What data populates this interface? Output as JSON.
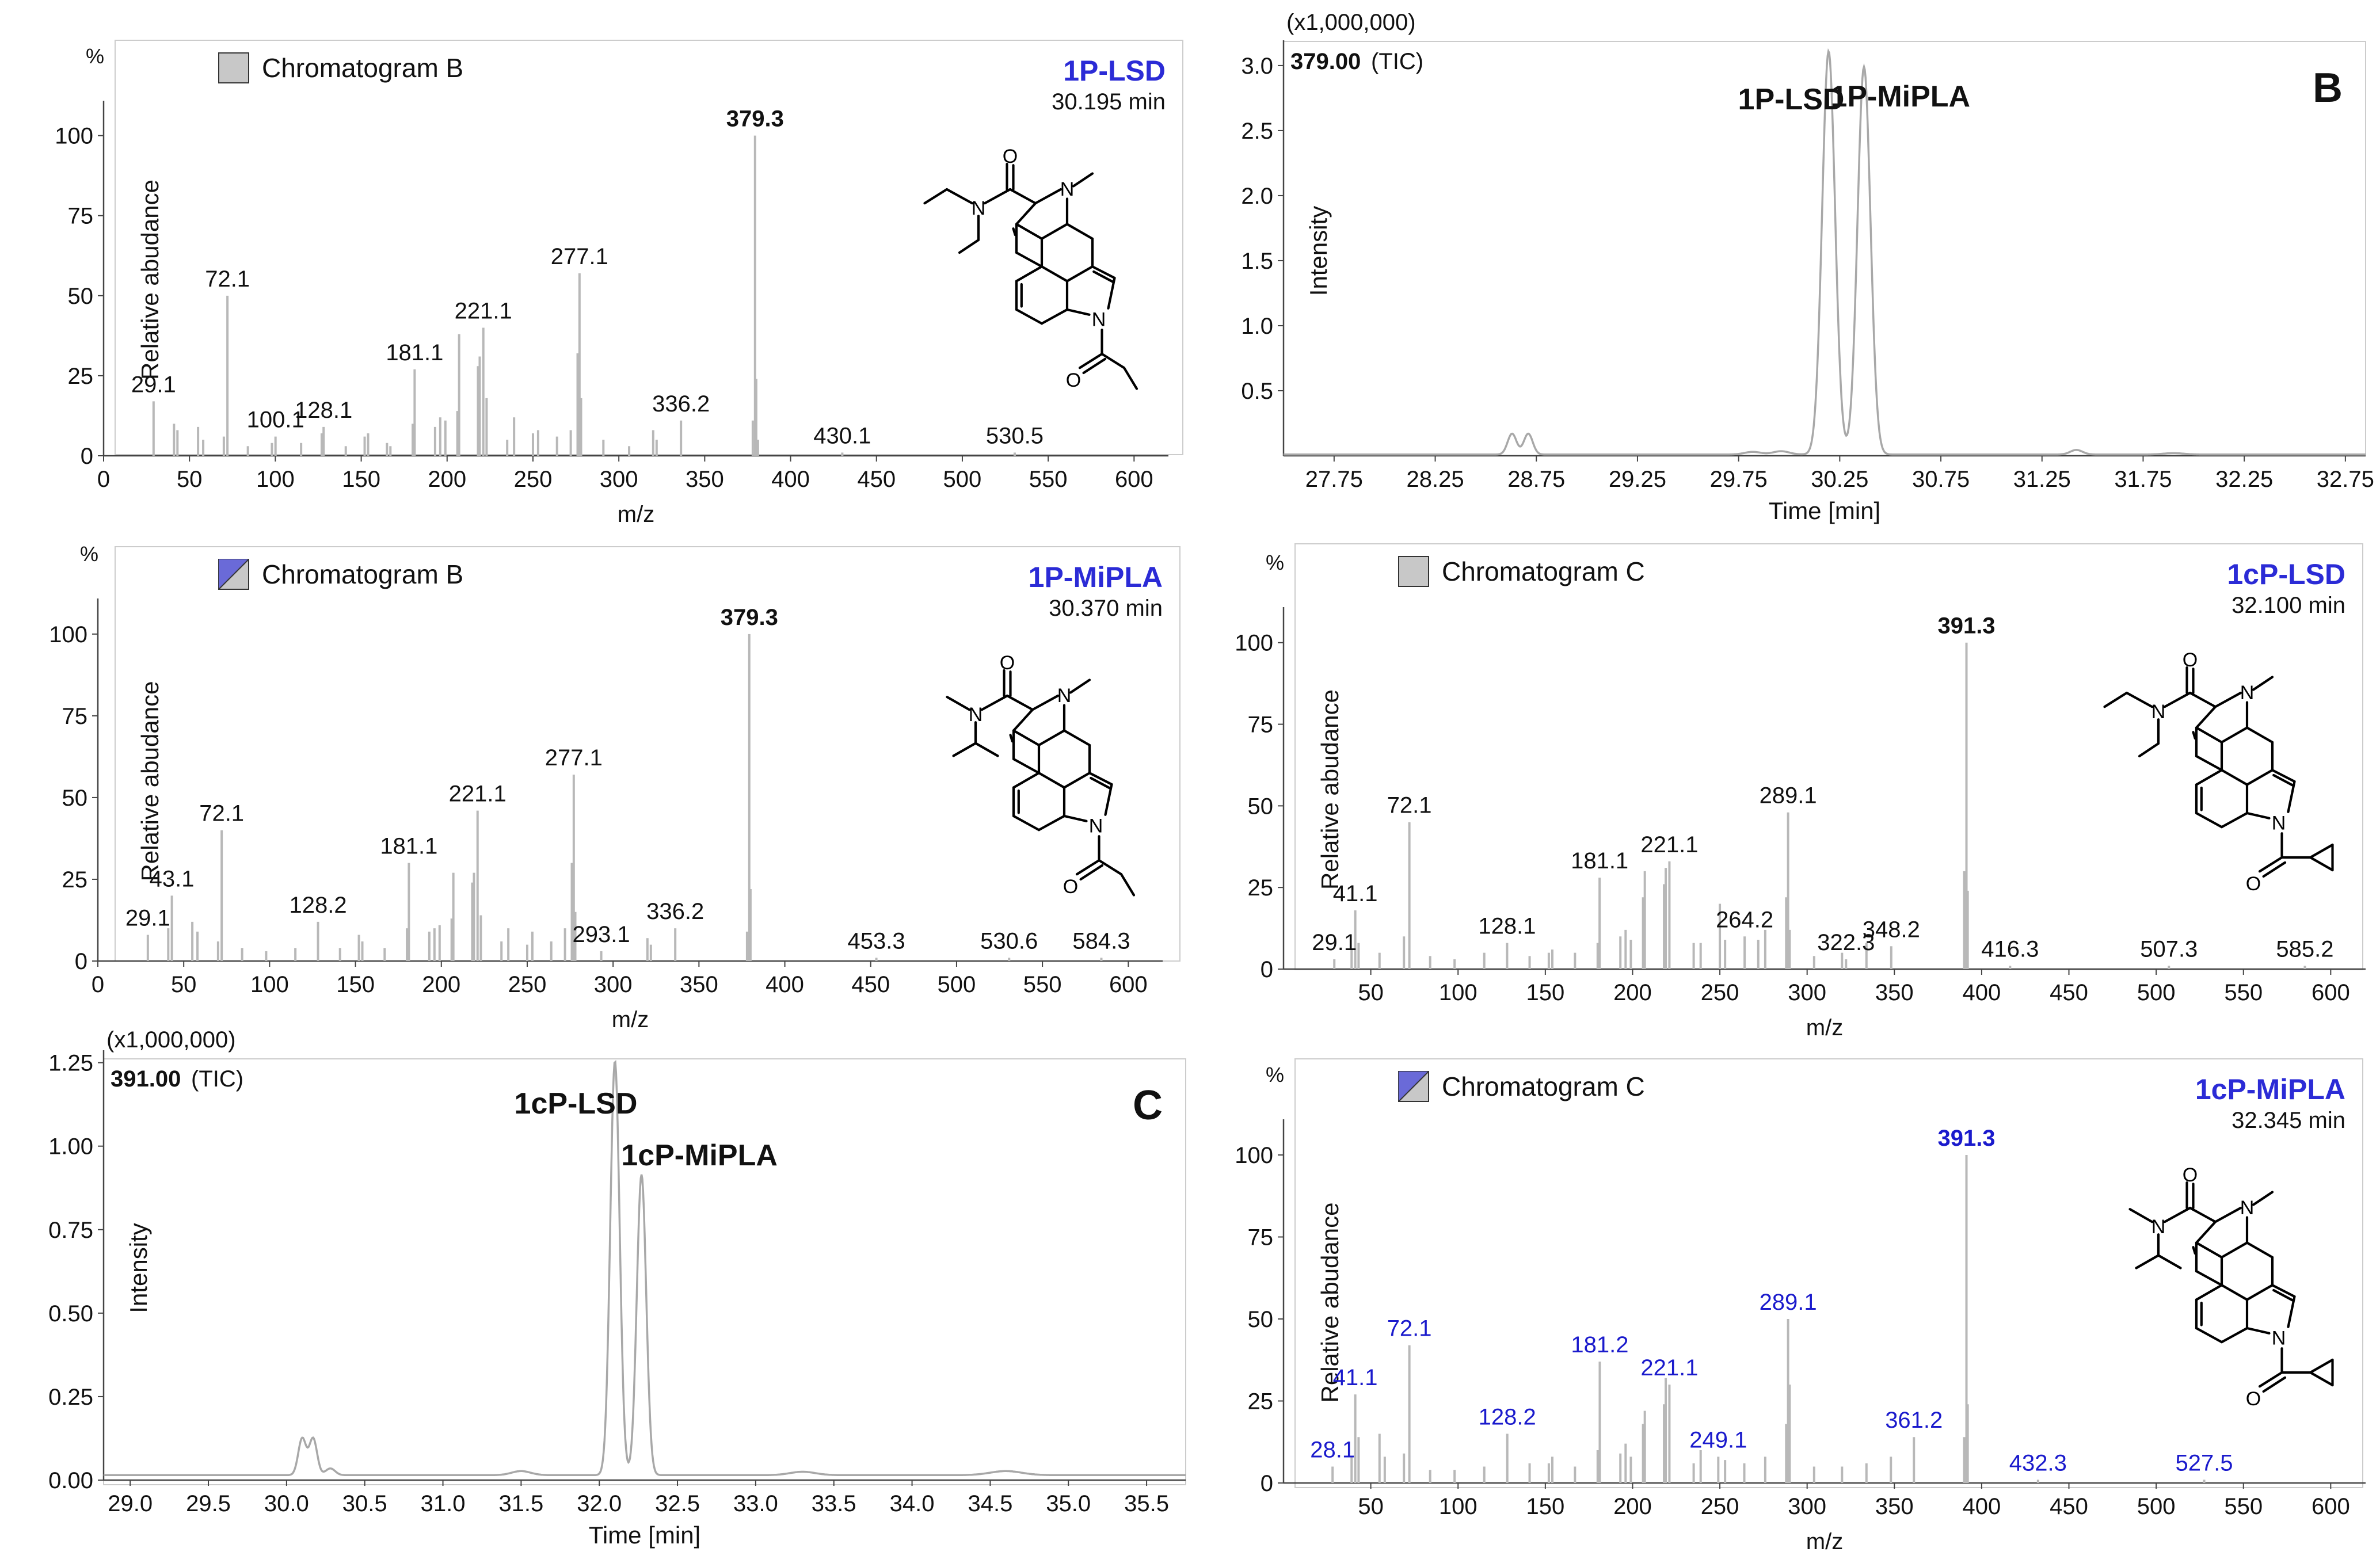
{
  "chart_data": [
    {
      "id": "ms_1p_lsd",
      "type": "bar",
      "legend_label": "Chromatogram B",
      "legend_swatch": "grey",
      "compound": "1P-LSD",
      "retention_time": "30.195 min",
      "base_peak_label": "379.3",
      "percent_label": "%",
      "ylabel": "Relative abudance",
      "xlabel": "m/z",
      "xlim": [
        0,
        620
      ],
      "ylim": [
        0,
        110
      ],
      "xticks": [
        0,
        50,
        100,
        150,
        200,
        250,
        300,
        350,
        400,
        450,
        500,
        550,
        600
      ],
      "yticks": [
        0,
        25,
        50,
        75,
        100
      ],
      "peaks": [
        [
          29.1,
          17
        ],
        [
          41,
          10
        ],
        [
          43,
          8
        ],
        [
          55,
          9
        ],
        [
          58,
          5
        ],
        [
          70,
          6
        ],
        [
          72.1,
          50
        ],
        [
          84,
          3
        ],
        [
          98,
          4
        ],
        [
          100.1,
          6
        ],
        [
          115,
          4
        ],
        [
          127,
          7
        ],
        [
          128.1,
          9
        ],
        [
          141,
          3
        ],
        [
          152,
          6
        ],
        [
          154,
          7
        ],
        [
          165,
          4
        ],
        [
          167,
          3
        ],
        [
          180,
          10
        ],
        [
          181.1,
          27
        ],
        [
          193,
          9
        ],
        [
          196,
          12
        ],
        [
          199,
          11
        ],
        [
          206,
          14
        ],
        [
          207,
          38
        ],
        [
          218,
          28
        ],
        [
          219,
          31
        ],
        [
          221.1,
          40
        ],
        [
          223,
          18
        ],
        [
          235,
          5
        ],
        [
          239,
          12
        ],
        [
          250,
          7
        ],
        [
          253,
          8
        ],
        [
          264,
          6
        ],
        [
          272,
          8
        ],
        [
          276,
          32
        ],
        [
          277.1,
          57
        ],
        [
          278,
          18
        ],
        [
          291,
          5
        ],
        [
          306,
          3
        ],
        [
          320,
          8
        ],
        [
          322,
          5
        ],
        [
          336.2,
          11
        ],
        [
          378,
          11
        ],
        [
          379.3,
          100
        ],
        [
          380,
          24
        ],
        [
          381,
          5
        ],
        [
          430.1,
          1
        ],
        [
          530.5,
          1
        ]
      ],
      "labels": [
        {
          "mz": 29.1,
          "text": "29.1"
        },
        {
          "mz": 72.1,
          "text": "72.1"
        },
        {
          "mz": 100.1,
          "text": "100.1"
        },
        {
          "mz": 128.1,
          "text": "128.1"
        },
        {
          "mz": 181.1,
          "text": "181.1"
        },
        {
          "mz": 221.1,
          "text": "221.1"
        },
        {
          "mz": 277.1,
          "text": "277.1"
        },
        {
          "mz": 336.2,
          "text": "336.2"
        },
        {
          "mz": 379.3,
          "text": "379.3"
        },
        {
          "mz": 430.1,
          "text": "430.1"
        },
        {
          "mz": 530.5,
          "text": "530.5"
        }
      ],
      "structure": "1P-LSD (N,N-diethyl amide, 1-propionyl indole)"
    },
    {
      "id": "tic_B",
      "type": "line",
      "panel_letter": "B",
      "scale_label": "(x1,000,000)",
      "trace_label": "379.00",
      "trace_suffix": "(TIC)",
      "ylabel": "Intensity",
      "xlabel": "Time [min]",
      "xlim": [
        27.5,
        32.85
      ],
      "ylim": [
        0,
        3.15
      ],
      "xticks": [
        27.75,
        28.25,
        28.75,
        29.25,
        29.75,
        30.25,
        30.75,
        31.25,
        31.75,
        32.25,
        32.75
      ],
      "xtick_labels": [
        "27.75",
        "28.25",
        "28.75",
        "29.25",
        "29.75",
        "30.25",
        "30.75",
        "31.25",
        "31.75",
        "32.25",
        "32.75"
      ],
      "yticks": [
        0.5,
        1.0,
        1.5,
        2.0,
        2.5,
        3.0
      ],
      "ytick_labels": [
        "0.5",
        "1.0",
        "1.5",
        "2.0",
        "2.5",
        "3.0"
      ],
      "baseline": 0.01,
      "peaks": [
        [
          28.63,
          0.16,
          0.022
        ],
        [
          28.71,
          0.16,
          0.022
        ],
        [
          29.82,
          0.02,
          0.04
        ],
        [
          29.96,
          0.025,
          0.04
        ],
        [
          30.195,
          3.1,
          0.032
        ],
        [
          30.37,
          2.98,
          0.032
        ],
        [
          31.42,
          0.035,
          0.03
        ],
        [
          31.9,
          0.01,
          0.05
        ]
      ],
      "annotations": [
        {
          "text": "1P-LSD",
          "x": 30.01
        },
        {
          "text": "1P-MiPLA",
          "x": 30.55
        }
      ]
    },
    {
      "id": "ms_1p_mipla",
      "type": "bar",
      "legend_label": "Chromatogram B",
      "legend_swatch": "split",
      "compound": "1P-MiPLA",
      "retention_time": "30.370 min",
      "base_peak_label": "379.3",
      "percent_label": "%",
      "ylabel": "Relative abudance",
      "xlabel": "m/z",
      "xlim": [
        0,
        620
      ],
      "ylim": [
        0,
        110
      ],
      "xticks": [
        0,
        50,
        100,
        150,
        200,
        250,
        300,
        350,
        400,
        450,
        500,
        550,
        600
      ],
      "yticks": [
        0,
        25,
        50,
        75,
        100
      ],
      "peaks": [
        [
          29.1,
          8
        ],
        [
          41,
          10
        ],
        [
          43.1,
          20
        ],
        [
          55,
          12
        ],
        [
          58,
          9
        ],
        [
          70,
          6
        ],
        [
          72.1,
          40
        ],
        [
          84,
          4
        ],
        [
          98,
          3
        ],
        [
          115,
          4
        ],
        [
          128.2,
          12
        ],
        [
          141,
          4
        ],
        [
          152,
          8
        ],
        [
          154,
          6
        ],
        [
          167,
          4
        ],
        [
          180,
          10
        ],
        [
          181.1,
          30
        ],
        [
          193,
          9
        ],
        [
          196,
          10
        ],
        [
          199,
          11
        ],
        [
          206,
          13
        ],
        [
          207,
          27
        ],
        [
          218,
          24
        ],
        [
          219,
          27
        ],
        [
          221.1,
          46
        ],
        [
          223,
          14
        ],
        [
          235,
          6
        ],
        [
          239,
          10
        ],
        [
          250,
          5
        ],
        [
          253,
          9
        ],
        [
          264,
          6
        ],
        [
          272,
          10
        ],
        [
          276,
          30
        ],
        [
          277.1,
          57
        ],
        [
          278,
          15
        ],
        [
          293.1,
          3
        ],
        [
          320,
          7
        ],
        [
          322,
          5
        ],
        [
          336.2,
          10
        ],
        [
          378,
          9
        ],
        [
          379.3,
          100
        ],
        [
          380,
          22
        ],
        [
          453.3,
          1
        ],
        [
          530.6,
          1
        ],
        [
          584.3,
          1
        ]
      ],
      "labels": [
        {
          "mz": 29.1,
          "text": "29.1"
        },
        {
          "mz": 43.1,
          "text": "43.1"
        },
        {
          "mz": 72.1,
          "text": "72.1"
        },
        {
          "mz": 128.2,
          "text": "128.2"
        },
        {
          "mz": 181.1,
          "text": "181.1"
        },
        {
          "mz": 221.1,
          "text": "221.1"
        },
        {
          "mz": 277.1,
          "text": "277.1"
        },
        {
          "mz": 293.1,
          "text": "293.1"
        },
        {
          "mz": 336.2,
          "text": "336.2"
        },
        {
          "mz": 379.3,
          "text": "379.3"
        },
        {
          "mz": 453.3,
          "text": "453.3"
        },
        {
          "mz": 530.6,
          "text": "530.6"
        },
        {
          "mz": 584.3,
          "text": "584.3"
        }
      ],
      "structure": "1P-MiPLA (N-methyl-N-isopropyl amide, 1-propionyl indole)"
    },
    {
      "id": "ms_1cp_lsd",
      "type": "bar",
      "legend_label": "Chromatogram C",
      "legend_swatch": "grey",
      "compound": "1cP-LSD",
      "retention_time": "32.100 min",
      "base_peak_label": "391.3",
      "percent_label": "%",
      "ylabel": "Relative abudance",
      "xlabel": "m/z",
      "xlim": [
        0,
        620
      ],
      "ylim": [
        0,
        110
      ],
      "xticks": [
        50,
        100,
        150,
        200,
        250,
        300,
        350,
        400,
        450,
        500,
        550,
        600
      ],
      "yticks": [
        0,
        25,
        50,
        75,
        100
      ],
      "peaks": [
        [
          29.1,
          3
        ],
        [
          39,
          6
        ],
        [
          41.1,
          18
        ],
        [
          43,
          8
        ],
        [
          55,
          5
        ],
        [
          69,
          10
        ],
        [
          72.1,
          45
        ],
        [
          84,
          4
        ],
        [
          98,
          3
        ],
        [
          115,
          5
        ],
        [
          128.1,
          8
        ],
        [
          141,
          4
        ],
        [
          152,
          5
        ],
        [
          154,
          6
        ],
        [
          167,
          5
        ],
        [
          180,
          8
        ],
        [
          181.1,
          28
        ],
        [
          193,
          10
        ],
        [
          196,
          12
        ],
        [
          199,
          9
        ],
        [
          206,
          22
        ],
        [
          207,
          30
        ],
        [
          218,
          26
        ],
        [
          219,
          31
        ],
        [
          221.1,
          33
        ],
        [
          235,
          8
        ],
        [
          239,
          8
        ],
        [
          250,
          20
        ],
        [
          253,
          9
        ],
        [
          264.2,
          10
        ],
        [
          272,
          9
        ],
        [
          276,
          12
        ],
        [
          288,
          22
        ],
        [
          289.1,
          48
        ],
        [
          290,
          12
        ],
        [
          304,
          4
        ],
        [
          320,
          5
        ],
        [
          322.3,
          3
        ],
        [
          334,
          8
        ],
        [
          348.2,
          7
        ],
        [
          390,
          30
        ],
        [
          391.3,
          100
        ],
        [
          392,
          24
        ],
        [
          416.3,
          1
        ],
        [
          507.3,
          1
        ],
        [
          585.2,
          1
        ]
      ],
      "labels": [
        {
          "mz": 29.1,
          "text": "29.1"
        },
        {
          "mz": 41.1,
          "text": "41.1"
        },
        {
          "mz": 72.1,
          "text": "72.1"
        },
        {
          "mz": 128.1,
          "text": "128.1"
        },
        {
          "mz": 181.1,
          "text": "181.1"
        },
        {
          "mz": 221.1,
          "text": "221.1"
        },
        {
          "mz": 264.2,
          "text": "264.2"
        },
        {
          "mz": 289.1,
          "text": "289.1"
        },
        {
          "mz": 322.3,
          "text": "322.3"
        },
        {
          "mz": 348.2,
          "text": "348.2"
        },
        {
          "mz": 391.3,
          "text": "391.3"
        },
        {
          "mz": 416.3,
          "text": "416.3"
        },
        {
          "mz": 507.3,
          "text": "507.3"
        },
        {
          "mz": 585.2,
          "text": "585.2"
        }
      ],
      "structure": "1cP-LSD (N,N-diethyl amide, 1-cyclopropanoyl indole)"
    },
    {
      "id": "tic_C",
      "type": "line",
      "panel_letter": "C",
      "scale_label": "(x1,000,000)",
      "trace_label": "391.00",
      "trace_suffix": "(TIC)",
      "ylabel": "Intensity",
      "xlabel": "Time [min]",
      "xlim": [
        28.83,
        35.75
      ],
      "ylim": [
        0,
        1.27
      ],
      "xticks": [
        29.0,
        29.5,
        30.0,
        30.5,
        31.0,
        31.5,
        32.0,
        32.5,
        33.0,
        33.5,
        34.0,
        34.5,
        35.0,
        35.5
      ],
      "xtick_labels": [
        "29.0",
        "29.5",
        "30.0",
        "30.5",
        "31.0",
        "31.5",
        "32.0",
        "32.5",
        "33.0",
        "33.5",
        "34.0",
        "34.5",
        "35.0",
        "35.5"
      ],
      "yticks": [
        0.0,
        0.25,
        0.5,
        0.75,
        1.0,
        1.25
      ],
      "ytick_labels": [
        "0.00",
        "0.25",
        "0.50",
        "0.75",
        "1.00",
        "1.25"
      ],
      "baseline": 0.015,
      "peaks": [
        [
          30.1,
          0.11,
          0.025
        ],
        [
          30.17,
          0.11,
          0.025
        ],
        [
          30.28,
          0.02,
          0.03
        ],
        [
          32.1,
          1.24,
          0.03
        ],
        [
          32.27,
          0.9,
          0.03
        ],
        [
          31.5,
          0.012,
          0.06
        ],
        [
          33.3,
          0.01,
          0.08
        ],
        [
          34.6,
          0.012,
          0.1
        ]
      ],
      "annotations": [
        {
          "text": "1cP-LSD",
          "x": 31.85
        },
        {
          "text": "1cP-MiPLA",
          "x": 32.64
        }
      ]
    },
    {
      "id": "ms_1cp_mipla",
      "type": "bar",
      "legend_label": "Chromatogram C",
      "legend_swatch": "split",
      "compound": "1cP-MiPLA",
      "retention_time": "32.345 min",
      "base_peak_label": "391.3",
      "percent_label": "%",
      "ylabel": "Relative abudance",
      "xlabel": "m/z",
      "xlim": [
        0,
        620
      ],
      "ylim": [
        0,
        110
      ],
      "xticks": [
        50,
        100,
        150,
        200,
        250,
        300,
        350,
        400,
        450,
        500,
        550,
        600
      ],
      "yticks": [
        0,
        25,
        50,
        75,
        100
      ],
      "peaks": [
        [
          28.1,
          5
        ],
        [
          39,
          8
        ],
        [
          41.1,
          27
        ],
        [
          43,
          14
        ],
        [
          55,
          15
        ],
        [
          58,
          8
        ],
        [
          69,
          9
        ],
        [
          72.1,
          42
        ],
        [
          84,
          4
        ],
        [
          98,
          4
        ],
        [
          115,
          5
        ],
        [
          128.2,
          15
        ],
        [
          141,
          6
        ],
        [
          152,
          6
        ],
        [
          154,
          8
        ],
        [
          167,
          5
        ],
        [
          180,
          10
        ],
        [
          181.2,
          37
        ],
        [
          193,
          9
        ],
        [
          196,
          12
        ],
        [
          199,
          8
        ],
        [
          206,
          18
        ],
        [
          207,
          22
        ],
        [
          218,
          24
        ],
        [
          219,
          32
        ],
        [
          221.1,
          30
        ],
        [
          235,
          6
        ],
        [
          239,
          10
        ],
        [
          249.1,
          8
        ],
        [
          253,
          7
        ],
        [
          264,
          6
        ],
        [
          276,
          8
        ],
        [
          288,
          18
        ],
        [
          289.1,
          50
        ],
        [
          290,
          30
        ],
        [
          304,
          5
        ],
        [
          320,
          5
        ],
        [
          334,
          6
        ],
        [
          348,
          8
        ],
        [
          361.2,
          14
        ],
        [
          390,
          14
        ],
        [
          391.3,
          100
        ],
        [
          392,
          24
        ],
        [
          432.3,
          1
        ],
        [
          527.5,
          1
        ]
      ],
      "labels": [
        {
          "mz": 28.1,
          "text": "28.1"
        },
        {
          "mz": 41.1,
          "text": "41.1"
        },
        {
          "mz": 72.1,
          "text": "72.1"
        },
        {
          "mz": 128.2,
          "text": "128.2"
        },
        {
          "mz": 181.2,
          "text": "181.2"
        },
        {
          "mz": 221.1,
          "text": "221.1"
        },
        {
          "mz": 249.1,
          "text": "249.1"
        },
        {
          "mz": 289.1,
          "text": "289.1"
        },
        {
          "mz": 361.2,
          "text": "361.2"
        },
        {
          "mz": 391.3,
          "text": "391.3"
        },
        {
          "mz": 432.3,
          "text": "432.3"
        },
        {
          "mz": 527.5,
          "text": "527.5"
        }
      ],
      "structure": "1cP-MiPLA (N-methyl-N-isopropyl amide, 1-cyclopropanoyl indole)"
    }
  ],
  "colors": {
    "axis": "#444444",
    "text": "#111111",
    "peak": "#b8b8b8",
    "trace": "#a8a8a8",
    "compound_blue": "#2b2bd6",
    "label_blue": "#1a1acc",
    "swatch_grey": "#c8c8c8",
    "swatch_blue": "#6a6ad8",
    "frame": "#cccccc"
  }
}
